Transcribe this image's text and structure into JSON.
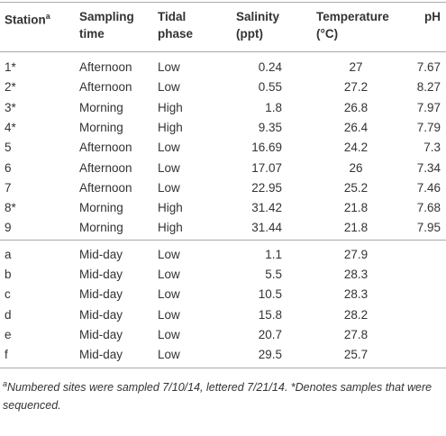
{
  "table": {
    "header": [
      {
        "lines": [
          "Station"
        ],
        "sup": "a"
      },
      {
        "lines": [
          "Sampling",
          "time"
        ]
      },
      {
        "lines": [
          "Tidal",
          "phase"
        ]
      },
      {
        "lines": [
          "Salinity",
          "(ppt)"
        ]
      },
      {
        "lines": [
          "Temperature",
          "(°C)"
        ]
      },
      {
        "lines": [
          "pH"
        ]
      }
    ],
    "groups": [
      [
        [
          "1*",
          "Afternoon",
          "Low",
          "0.24",
          "27",
          "7.67"
        ],
        [
          "2*",
          "Afternoon",
          "Low",
          "0.55",
          "27.2",
          "8.27"
        ],
        [
          "3*",
          "Morning",
          "High",
          "1.8",
          "26.8",
          "7.97"
        ],
        [
          "4*",
          "Morning",
          "High",
          "9.35",
          "26.4",
          "7.79"
        ],
        [
          "5",
          "Afternoon",
          "Low",
          "16.69",
          "24.2",
          "7.3"
        ],
        [
          "6",
          "Afternoon",
          "Low",
          "17.07",
          "26",
          "7.34"
        ],
        [
          "7",
          "Afternoon",
          "Low",
          "22.95",
          "25.2",
          "7.46"
        ],
        [
          "8*",
          "Morning",
          "High",
          "31.42",
          "21.8",
          "7.68"
        ],
        [
          "9",
          "Morning",
          "High",
          "31.44",
          "21.8",
          "7.95"
        ]
      ],
      [
        [
          "a",
          "Mid-day",
          "Low",
          "1.1",
          "27.9"
        ],
        [
          "b",
          "Mid-day",
          "Low",
          "5.5",
          "28.3"
        ],
        [
          "c",
          "Mid-day",
          "Low",
          "10.5",
          "28.3"
        ],
        [
          "d",
          "Mid-day",
          "Low",
          "15.8",
          "28.2"
        ],
        [
          "e",
          "Mid-day",
          "Low",
          "20.7",
          "27.8"
        ],
        [
          "f",
          "Mid-day",
          "Low",
          "29.5",
          "25.7"
        ]
      ]
    ],
    "footnote": {
      "sup": "a",
      "text": "Numbered sites were sampled 7/10/14, lettered 7/21/14. *Denotes samples that were sequenced."
    }
  }
}
